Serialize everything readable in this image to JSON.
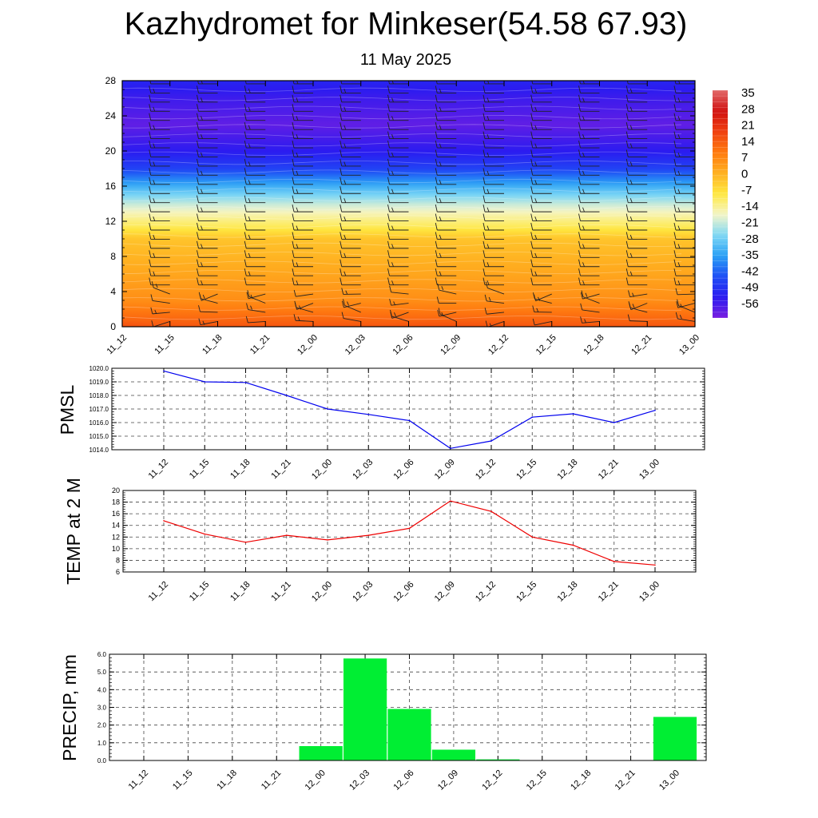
{
  "header": {
    "title": "Kazhydromet for Minkeser(54.58 67.93)",
    "subtitle": "11 May 2025"
  },
  "chart_data": [
    {
      "type": "heatmap",
      "title": "",
      "x_tick_labels": [
        "11_12",
        "11_15",
        "11_18",
        "11_21",
        "12_00",
        "12_03",
        "12_06",
        "12_09",
        "12_12",
        "12_15",
        "12_18",
        "12_21",
        "13_00"
      ],
      "y_tick_labels": [
        "0",
        "4",
        "8",
        "12",
        "16",
        "20",
        "24",
        "28"
      ],
      "ylim": [
        0,
        28
      ],
      "colorbar_labels": [
        "35",
        "28",
        "21",
        "14",
        "7",
        "0",
        "-7",
        "-14",
        "-21",
        "-28",
        "-35",
        "-42",
        "-49",
        "-56"
      ],
      "colorbar_range": [
        -63,
        38
      ],
      "colormap": [
        "#7a1fe0",
        "#2a1bf0",
        "#1f4ff5",
        "#2aa0f5",
        "#7fd8f5",
        "#f5f5c8",
        "#ffe840",
        "#ffb020",
        "#ff7a10",
        "#f04010",
        "#d01010",
        "#e26a6a"
      ],
      "temperature_by_height": [
        [
          0,
          16
        ],
        [
          1,
          13
        ],
        [
          3,
          7
        ],
        [
          6,
          3
        ],
        [
          10,
          -2
        ],
        [
          11.5,
          -10
        ],
        [
          12.5,
          -14
        ],
        [
          14,
          -21
        ],
        [
          15.5,
          -30
        ],
        [
          17,
          -40
        ],
        [
          18,
          -47
        ],
        [
          20,
          -54
        ],
        [
          23,
          -60
        ],
        [
          26,
          -56
        ],
        [
          28,
          -52
        ]
      ],
      "grid": false,
      "wind_barbs": true
    },
    {
      "type": "line",
      "ylabel": "PMSL",
      "categories": [
        "11_12",
        "11_15",
        "11_18",
        "11_21",
        "12_00",
        "12_03",
        "12_06",
        "12_09",
        "12_12",
        "12_15",
        "12_18",
        "12_21",
        "13_00"
      ],
      "series": [
        {
          "values": [
            1019.8,
            1019.0,
            1018.95,
            1018.0,
            1017.0,
            1016.6,
            1016.15,
            1014.1,
            1014.65,
            1016.4,
            1016.65,
            1016.0,
            1016.9
          ],
          "color": "#0000ee"
        }
      ],
      "ylim": [
        1014.0,
        1020.0
      ],
      "y_tick_labels": [
        "1014.0",
        "1015.0",
        "1016.0",
        "1017.0",
        "1018.0",
        "1019.0",
        "1020.0"
      ],
      "grid": true
    },
    {
      "type": "line",
      "ylabel": "TEMP at 2 M",
      "categories": [
        "11_12",
        "11_15",
        "11_18",
        "11_21",
        "12_00",
        "12_03",
        "12_06",
        "12_09",
        "12_12",
        "12_15",
        "12_18",
        "12_21",
        "13_00"
      ],
      "series": [
        {
          "values": [
            14.8,
            12.5,
            11.1,
            12.3,
            11.5,
            12.3,
            13.5,
            18.2,
            16.4,
            12.0,
            10.6,
            7.8,
            7.2
          ],
          "color": "#ee0000"
        }
      ],
      "ylim": [
        6,
        20
      ],
      "y_tick_labels": [
        "6",
        "8",
        "10",
        "12",
        "14",
        "16",
        "18",
        "20"
      ],
      "grid": true
    },
    {
      "type": "bar",
      "ylabel": "PRECIP, mm",
      "categories": [
        "11_12",
        "11_15",
        "11_18",
        "11_21",
        "12_00",
        "12_03",
        "12_06",
        "12_09",
        "12_12",
        "12_15",
        "12_18",
        "12_21",
        "13_00"
      ],
      "values": [
        0,
        0,
        0,
        0,
        0.8,
        5.75,
        2.9,
        0.6,
        0.05,
        0,
        0,
        0,
        2.45
      ],
      "color": "#00ee33",
      "ylim": [
        0,
        6
      ],
      "y_tick_labels": [
        "0.0",
        "1.0",
        "2.0",
        "3.0",
        "4.0",
        "5.0",
        "6.0"
      ],
      "grid": true
    }
  ]
}
